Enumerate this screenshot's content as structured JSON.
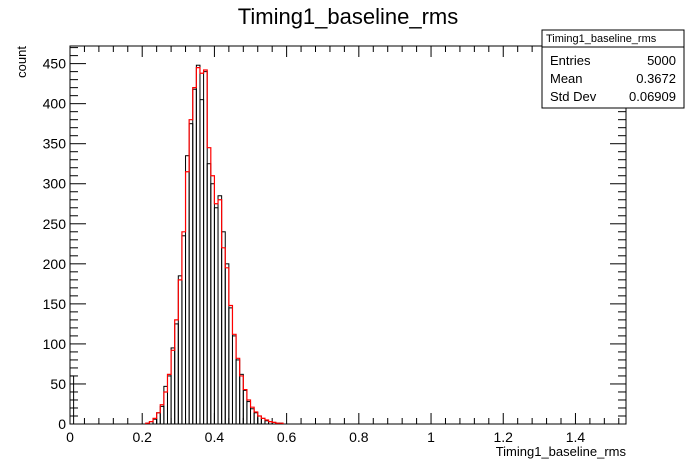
{
  "chart_data": {
    "type": "histogram",
    "title": "Timing1_baseline_rms",
    "xlabel": "Timing1_baseline_rms",
    "ylabel": "count",
    "xlim": [
      0,
      1.54
    ],
    "ylim": [
      0,
      472
    ],
    "xticks": [
      0,
      0.2,
      0.4,
      0.6,
      0.8,
      1,
      1.2,
      1.4
    ],
    "xtick_labels": [
      "0",
      "0.2",
      "0.4",
      "0.6",
      "0.8",
      "1",
      "1.2",
      "1.4"
    ],
    "yticks": [
      0,
      50,
      100,
      150,
      200,
      250,
      300,
      350,
      400,
      450
    ],
    "ytick_labels": [
      "0",
      "50",
      "100",
      "150",
      "200",
      "250",
      "300",
      "350",
      "400",
      "450"
    ],
    "bin_width": 0.01,
    "legend_position": "top-right",
    "series": [
      {
        "style": "histogram",
        "color": "#000000",
        "bins": [
          [
            0.0,
            60
          ],
          [
            0.21,
            1
          ],
          [
            0.22,
            3
          ],
          [
            0.23,
            6
          ],
          [
            0.24,
            14
          ],
          [
            0.25,
            22
          ],
          [
            0.26,
            47
          ],
          [
            0.27,
            60
          ],
          [
            0.28,
            95
          ],
          [
            0.29,
            125
          ],
          [
            0.3,
            185
          ],
          [
            0.31,
            235
          ],
          [
            0.32,
            335
          ],
          [
            0.33,
            375
          ],
          [
            0.34,
            418
          ],
          [
            0.35,
            448
          ],
          [
            0.36,
            405
          ],
          [
            0.37,
            440
          ],
          [
            0.38,
            325
          ],
          [
            0.39,
            300
          ],
          [
            0.4,
            270
          ],
          [
            0.41,
            285
          ],
          [
            0.42,
            240
          ],
          [
            0.43,
            200
          ],
          [
            0.44,
            145
          ],
          [
            0.45,
            110
          ],
          [
            0.46,
            80
          ],
          [
            0.47,
            62
          ],
          [
            0.48,
            42
          ],
          [
            0.49,
            28
          ],
          [
            0.5,
            19
          ],
          [
            0.51,
            14
          ],
          [
            0.52,
            10
          ],
          [
            0.53,
            7
          ],
          [
            0.54,
            4
          ],
          [
            0.55,
            3
          ],
          [
            0.56,
            2
          ],
          [
            0.57,
            1
          ],
          [
            0.58,
            1
          ]
        ]
      },
      {
        "style": "step-line",
        "color": "#ff0000",
        "bins": [
          [
            0.21,
            1
          ],
          [
            0.22,
            3
          ],
          [
            0.23,
            7
          ],
          [
            0.24,
            14
          ],
          [
            0.25,
            24
          ],
          [
            0.26,
            40
          ],
          [
            0.27,
            62
          ],
          [
            0.28,
            92
          ],
          [
            0.29,
            130
          ],
          [
            0.3,
            180
          ],
          [
            0.31,
            240
          ],
          [
            0.32,
            315
          ],
          [
            0.33,
            380
          ],
          [
            0.34,
            420
          ],
          [
            0.35,
            445
          ],
          [
            0.36,
            438
          ],
          [
            0.37,
            442
          ],
          [
            0.38,
            345
          ],
          [
            0.39,
            310
          ],
          [
            0.4,
            275
          ],
          [
            0.41,
            280
          ],
          [
            0.42,
            220
          ],
          [
            0.43,
            195
          ],
          [
            0.44,
            148
          ],
          [
            0.45,
            112
          ],
          [
            0.46,
            82
          ],
          [
            0.47,
            60
          ],
          [
            0.48,
            43
          ],
          [
            0.49,
            30
          ],
          [
            0.5,
            21
          ],
          [
            0.51,
            15
          ],
          [
            0.52,
            10
          ],
          [
            0.53,
            7
          ],
          [
            0.54,
            5
          ],
          [
            0.55,
            3
          ],
          [
            0.56,
            2
          ],
          [
            0.57,
            1
          ],
          [
            0.58,
            1
          ]
        ]
      }
    ],
    "stats_box": {
      "title": "Timing1_baseline_rms",
      "rows": [
        {
          "label": "Entries",
          "value": "5000"
        },
        {
          "label": "Mean",
          "value": "0.3672"
        },
        {
          "label": "Std Dev",
          "value": "0.06909"
        }
      ]
    }
  }
}
